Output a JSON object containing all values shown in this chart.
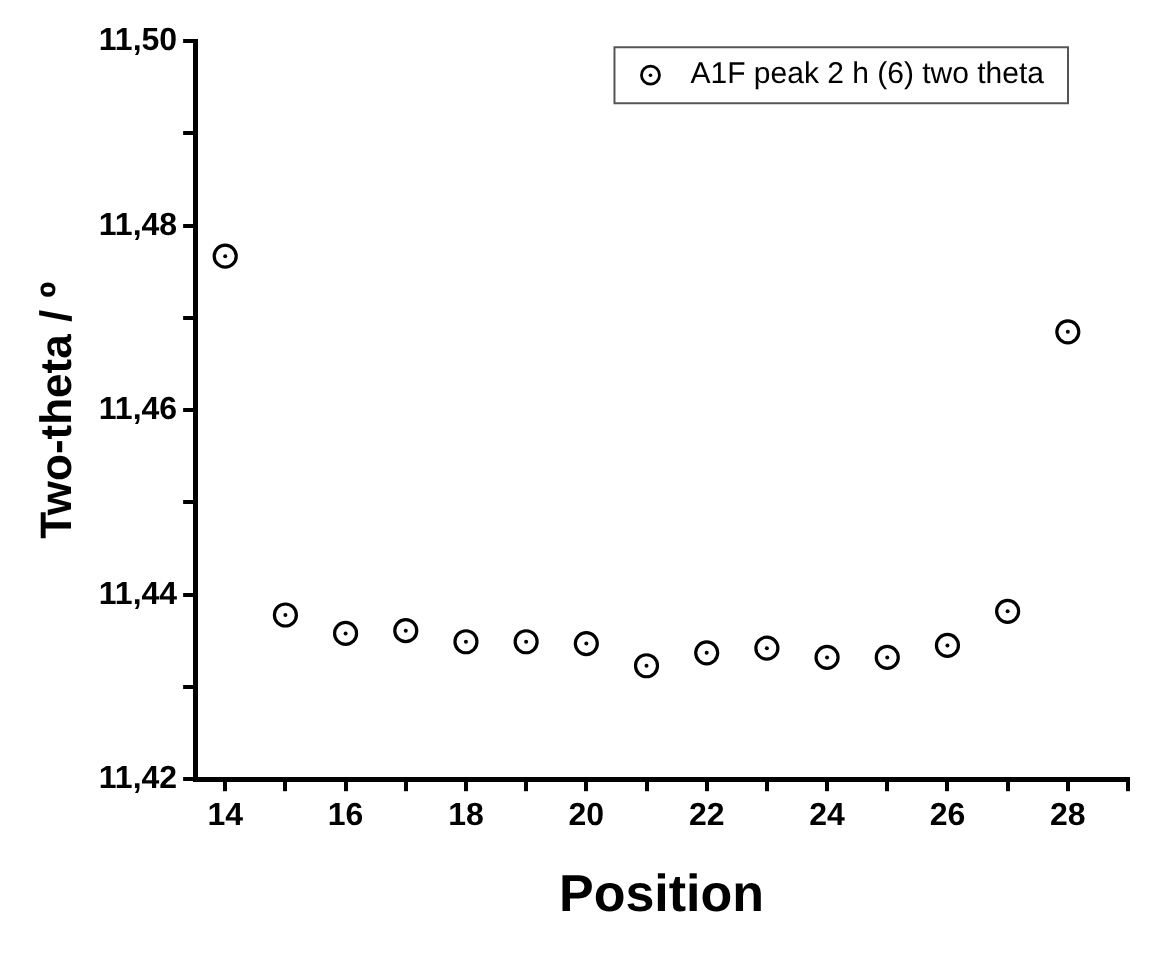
{
  "chart_data": {
    "type": "scatter",
    "xlabel": "Position",
    "ylabel": "Two-theta / º",
    "x": [
      14,
      15,
      16,
      17,
      18,
      19,
      20,
      21,
      22,
      23,
      24,
      25,
      26,
      27,
      28
    ],
    "series": [
      {
        "name": "A1F peak 2 h (6) two theta",
        "color": "#000000",
        "values": [
          11.4767,
          11.4378,
          11.4358,
          11.4361,
          11.4349,
          11.4349,
          11.4347,
          11.4323,
          11.4337,
          11.4342,
          11.4332,
          11.4332,
          11.4345,
          11.4382,
          11.4685
        ]
      }
    ],
    "xlim": [
      13.5,
      29
    ],
    "xticks": [
      14,
      {
        "value": 15,
        "label": null
      },
      16,
      {
        "value": 17,
        "label": null
      },
      18,
      {
        "value": 19,
        "label": null
      },
      20,
      {
        "value": 21,
        "label": null
      },
      22,
      {
        "value": 23,
        "label": null
      },
      24,
      {
        "value": 25,
        "label": null
      },
      26,
      {
        "value": 27,
        "label": null
      },
      28,
      {
        "value": 29,
        "label": null
      }
    ],
    "ylim": [
      11.42,
      11.5
    ],
    "yticks": [
      {
        "value": 11.42,
        "label": "11,42"
      },
      {
        "value": 11.43,
        "label": null
      },
      {
        "value": 11.44,
        "label": "11,44"
      },
      {
        "value": 11.45,
        "label": null
      },
      {
        "value": 11.46,
        "label": "11,46"
      },
      {
        "value": 11.47,
        "label": null
      },
      {
        "value": 11.48,
        "label": "11,48"
      },
      {
        "value": 11.49,
        "label": null
      },
      {
        "value": 11.5,
        "label": "11,50"
      }
    ],
    "grid": false,
    "legend": "top right",
    "marker": "circle"
  }
}
